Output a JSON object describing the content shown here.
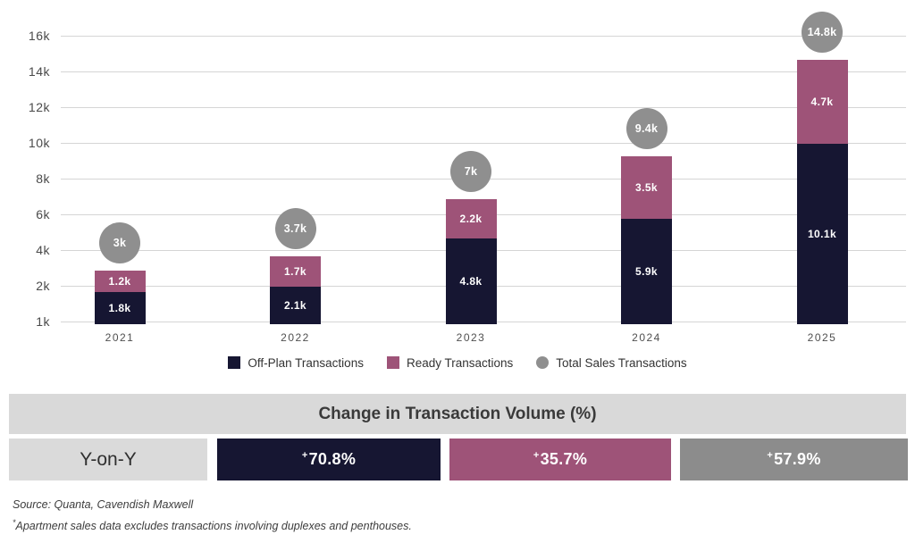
{
  "chart_data": {
    "type": "bar",
    "stacked": true,
    "categories": [
      "2021",
      "2022",
      "2023",
      "2024",
      "2025"
    ],
    "series": [
      {
        "name": "Off-Plan Transactions",
        "color": "#161632",
        "values": [
          1800,
          2100,
          4800,
          5900,
          10100
        ],
        "labels": [
          "1.8k",
          "2.1k",
          "4.8k",
          "5.9k",
          "10.1k"
        ]
      },
      {
        "name": "Ready Transactions",
        "color": "#9e5378",
        "values": [
          1200,
          1700,
          2200,
          3500,
          4700
        ],
        "labels": [
          "1.2k",
          "1.7k",
          "2.2k",
          "3.5k",
          "4.7k"
        ]
      }
    ],
    "totals_series": {
      "name": "Total Sales Transactions",
      "color": "#8f8f8f",
      "marker": "circle",
      "values": [
        3000,
        3700,
        7000,
        9400,
        14800
      ],
      "labels": [
        "3k",
        "3.7k",
        "7k",
        "9.4k",
        "14.8k"
      ]
    },
    "y_ticks": [
      "16k",
      "14k",
      "12k",
      "10k",
      "8k",
      "6k",
      "4k",
      "2k",
      "1k"
    ],
    "ylim": [
      0,
      16000
    ],
    "grid": true,
    "legend_position": "bottom"
  },
  "legend": {
    "items": [
      {
        "label": "Off-Plan Transactions",
        "color": "#161632",
        "shape": "square"
      },
      {
        "label": "Ready Transactions",
        "color": "#9e5378",
        "shape": "square"
      },
      {
        "label": "Total Sales Transactions",
        "color": "#8f8f8f",
        "shape": "circle"
      }
    ]
  },
  "summary": {
    "title": "Change in Transaction Volume (%)",
    "band_color": "#d9d9d9",
    "row_label": "Y-on-Y",
    "row_label_color": "#dadada",
    "cells": [
      {
        "prefix": "+",
        "value": "70.8%",
        "color": "#161632"
      },
      {
        "prefix": "+",
        "value": "35.7%",
        "color": "#9e5378"
      },
      {
        "prefix": "+",
        "value": "57.9%",
        "color": "#8c8c8c"
      }
    ]
  },
  "footer": {
    "source": "Source: Quanta, Cavendish Maxwell",
    "note_mark": "*",
    "note": "Apartment sales data excludes transactions involving duplexes and penthouses."
  }
}
